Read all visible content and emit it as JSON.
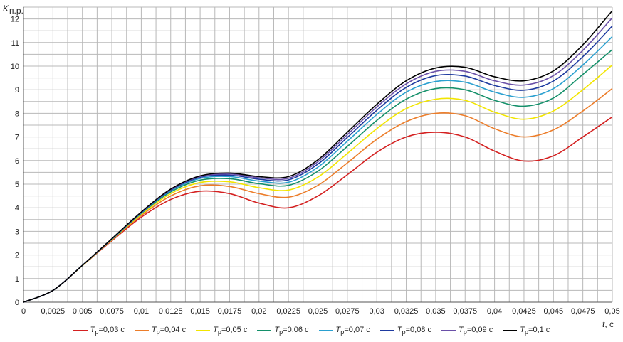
{
  "chart_data": {
    "type": "line",
    "title": "",
    "xlabel": "t, c",
    "ylabel": "Kп.р.",
    "xlim": [
      0,
      0.05
    ],
    "ylim": [
      0,
      12.5
    ],
    "grid": true,
    "legend_position": "bottom",
    "x_ticks": [
      "0",
      "0,0025",
      "0,005",
      "0,0075",
      "0,01",
      "0,0125",
      "0,015",
      "0,0175",
      "0,02",
      "0,0225",
      "0,025",
      "0,0275",
      "0,03",
      "0,0325",
      "0,035",
      "0,0375",
      "0,04",
      "0,0425",
      "0,045",
      "0,0475",
      "0,05"
    ],
    "y_ticks": [
      "0",
      "1",
      "2",
      "3",
      "4",
      "5",
      "6",
      "7",
      "8",
      "9",
      "10",
      "11",
      "12"
    ],
    "x": [
      0,
      0.0025,
      0.005,
      0.0075,
      0.01,
      0.0125,
      0.015,
      0.0175,
      0.02,
      0.0225,
      0.025,
      0.0275,
      0.03,
      0.0325,
      0.035,
      0.0375,
      0.04,
      0.0425,
      0.045,
      0.0475,
      0.05
    ],
    "series": [
      {
        "name": "Tp=0,03 c",
        "color": "#d42020",
        "values": [
          0,
          0.5,
          1.55,
          2.6,
          3.6,
          4.35,
          4.7,
          4.6,
          4.2,
          4.0,
          4.5,
          5.4,
          6.35,
          7.0,
          7.2,
          7.0,
          6.4,
          5.98,
          6.2,
          7.0,
          7.85
        ]
      },
      {
        "name": "Tp=0,04 c",
        "color": "#ec7d2a",
        "values": [
          0,
          0.5,
          1.55,
          2.63,
          3.67,
          4.5,
          4.93,
          4.9,
          4.6,
          4.45,
          4.95,
          5.9,
          6.9,
          7.65,
          8.0,
          7.9,
          7.35,
          7.0,
          7.3,
          8.1,
          9.05
        ]
      },
      {
        "name": "Tp=0,05 c",
        "color": "#f2e500",
        "values": [
          0,
          0.5,
          1.55,
          2.65,
          3.72,
          4.6,
          5.07,
          5.1,
          4.85,
          4.75,
          5.3,
          6.3,
          7.35,
          8.2,
          8.6,
          8.55,
          8.05,
          7.75,
          8.1,
          9.0,
          10.05
        ]
      },
      {
        "name": "Tp=0,06 c",
        "color": "#14906a",
        "values": [
          0,
          0.5,
          1.56,
          2.66,
          3.76,
          4.67,
          5.17,
          5.23,
          5.02,
          4.95,
          5.55,
          6.6,
          7.7,
          8.6,
          9.05,
          9.0,
          8.55,
          8.3,
          8.65,
          9.65,
          10.7
        ]
      },
      {
        "name": "Tp=0,07 c",
        "color": "#2aa0d0",
        "values": [
          0,
          0.5,
          1.56,
          2.67,
          3.78,
          4.72,
          5.24,
          5.32,
          5.13,
          5.08,
          5.72,
          6.82,
          7.95,
          8.9,
          9.35,
          9.32,
          8.9,
          8.68,
          9.05,
          10.05,
          11.25
        ]
      },
      {
        "name": "Tp=0,08 c",
        "color": "#1e3aa0",
        "values": [
          0,
          0.5,
          1.56,
          2.68,
          3.8,
          4.75,
          5.29,
          5.38,
          5.21,
          5.18,
          5.85,
          6.98,
          8.13,
          9.1,
          9.6,
          9.58,
          9.18,
          8.98,
          9.37,
          10.4,
          11.7
        ]
      },
      {
        "name": "Tp=0,09 c",
        "color": "#6a50a8",
        "values": [
          0,
          0.5,
          1.56,
          2.68,
          3.81,
          4.77,
          5.32,
          5.43,
          5.27,
          5.25,
          5.95,
          7.1,
          8.27,
          9.25,
          9.78,
          9.78,
          9.38,
          9.2,
          9.6,
          10.67,
          12.05
        ]
      },
      {
        "name": "Tp=0,1 c",
        "color": "#000000",
        "values": [
          0,
          0.5,
          1.56,
          2.69,
          3.82,
          4.79,
          5.35,
          5.47,
          5.32,
          5.32,
          6.03,
          7.2,
          8.38,
          9.38,
          9.92,
          9.95,
          9.55,
          9.38,
          9.8,
          10.9,
          12.35
        ]
      }
    ]
  },
  "legend": [
    {
      "sym": "T",
      "sub": "p",
      "rest": "=0,03 c"
    },
    {
      "sym": "T",
      "sub": "p",
      "rest": "=0,04 c"
    },
    {
      "sym": "T",
      "sub": "p",
      "rest": "=0,05 c"
    },
    {
      "sym": "T",
      "sub": "p",
      "rest": "=0,06 c"
    },
    {
      "sym": "T",
      "sub": "p",
      "rest": "=0,07 c"
    },
    {
      "sym": "T",
      "sub": "p",
      "rest": "=0,08 c"
    },
    {
      "sym": "T",
      "sub": "p",
      "rest": "=0,09 c"
    },
    {
      "sym": "T",
      "sub": "p",
      "rest": "=0,1 c"
    }
  ]
}
